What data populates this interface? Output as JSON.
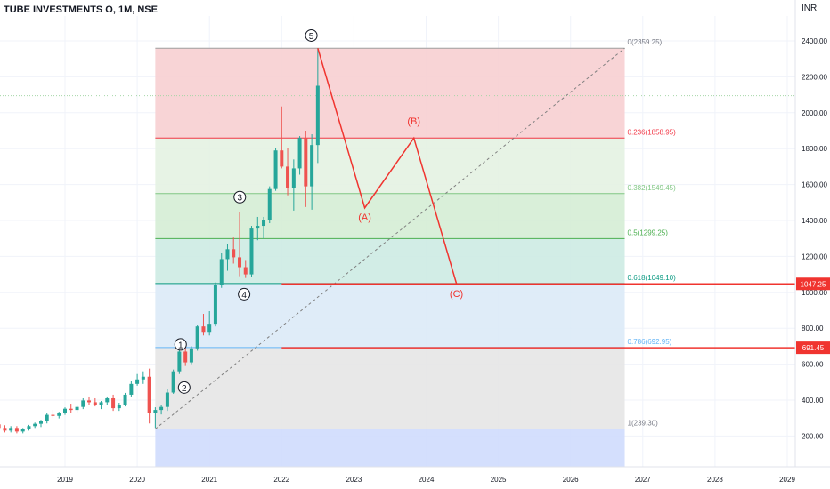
{
  "header": {
    "symbol": "TUBE INVESTMENTS O, 1M, NSE",
    "currency": "INR"
  },
  "colors": {
    "up": "#26a69a",
    "down": "#ef5350",
    "projection": "#f0342f",
    "fib_0": "#f7cfd2",
    "fib_0236": "#e4f2e2",
    "fib_0382": "#d5edd5",
    "fib_05": "#cdebe3",
    "fib_0618": "#dbeaf7",
    "fib_0786": "#e6e6e6",
    "fib_1": "#cfdcfd"
  },
  "chart_data": {
    "type": "candlestick",
    "y_axis": {
      "range": [
        0,
        2550
      ],
      "ticks": [
        "200.00",
        "400.00",
        "600.00",
        "800.00",
        "1000.00",
        "1200.00",
        "1400.00",
        "1600.00",
        "1800.00",
        "2000.00",
        "2200.00",
        "2400.00"
      ],
      "grid": true
    },
    "x_axis": {
      "ticks": [
        "2019",
        "2020",
        "2021",
        "2022",
        "2023",
        "2024",
        "2025",
        "2026",
        "2027",
        "2028",
        "2029"
      ]
    },
    "candles": [
      {
        "t": 2018.0,
        "o": 280,
        "h": 295,
        "l": 250,
        "c": 265
      },
      {
        "t": 2018.083,
        "o": 265,
        "h": 280,
        "l": 235,
        "c": 245
      },
      {
        "t": 2018.167,
        "o": 245,
        "h": 260,
        "l": 220,
        "c": 230
      },
      {
        "t": 2018.25,
        "o": 230,
        "h": 255,
        "l": 220,
        "c": 245
      },
      {
        "t": 2018.333,
        "o": 245,
        "h": 255,
        "l": 215,
        "c": 225
      },
      {
        "t": 2018.417,
        "o": 225,
        "h": 245,
        "l": 215,
        "c": 238
      },
      {
        "t": 2018.5,
        "o": 238,
        "h": 262,
        "l": 230,
        "c": 255
      },
      {
        "t": 2018.583,
        "o": 255,
        "h": 275,
        "l": 245,
        "c": 268
      },
      {
        "t": 2018.667,
        "o": 268,
        "h": 290,
        "l": 250,
        "c": 282
      },
      {
        "t": 2018.75,
        "o": 282,
        "h": 330,
        "l": 270,
        "c": 318
      },
      {
        "t": 2018.833,
        "o": 318,
        "h": 345,
        "l": 300,
        "c": 312
      },
      {
        "t": 2018.917,
        "o": 312,
        "h": 335,
        "l": 298,
        "c": 326
      },
      {
        "t": 2019.0,
        "o": 326,
        "h": 360,
        "l": 318,
        "c": 352
      },
      {
        "t": 2019.083,
        "o": 352,
        "h": 380,
        "l": 330,
        "c": 345
      },
      {
        "t": 2019.167,
        "o": 345,
        "h": 372,
        "l": 330,
        "c": 362
      },
      {
        "t": 2019.25,
        "o": 362,
        "h": 410,
        "l": 350,
        "c": 398
      },
      {
        "t": 2019.333,
        "o": 398,
        "h": 420,
        "l": 375,
        "c": 388
      },
      {
        "t": 2019.417,
        "o": 388,
        "h": 410,
        "l": 365,
        "c": 375
      },
      {
        "t": 2019.5,
        "o": 375,
        "h": 395,
        "l": 350,
        "c": 388
      },
      {
        "t": 2019.583,
        "o": 388,
        "h": 420,
        "l": 375,
        "c": 410
      },
      {
        "t": 2019.667,
        "o": 410,
        "h": 430,
        "l": 340,
        "c": 355
      },
      {
        "t": 2019.75,
        "o": 355,
        "h": 385,
        "l": 340,
        "c": 372
      },
      {
        "t": 2019.833,
        "o": 372,
        "h": 440,
        "l": 365,
        "c": 430
      },
      {
        "t": 2019.917,
        "o": 430,
        "h": 505,
        "l": 420,
        "c": 490
      },
      {
        "t": 2020.0,
        "o": 490,
        "h": 545,
        "l": 480,
        "c": 515
      },
      {
        "t": 2020.083,
        "o": 515,
        "h": 560,
        "l": 490,
        "c": 530
      },
      {
        "t": 2020.167,
        "o": 530,
        "h": 575,
        "l": 270,
        "c": 330
      },
      {
        "t": 2020.25,
        "o": 330,
        "h": 360,
        "l": 245,
        "c": 345
      },
      {
        "t": 2020.333,
        "o": 345,
        "h": 375,
        "l": 320,
        "c": 362
      },
      {
        "t": 2020.417,
        "o": 362,
        "h": 460,
        "l": 340,
        "c": 442
      },
      {
        "t": 2020.5,
        "o": 442,
        "h": 570,
        "l": 435,
        "c": 560
      },
      {
        "t": 2020.583,
        "o": 560,
        "h": 685,
        "l": 545,
        "c": 670
      },
      {
        "t": 2020.667,
        "o": 670,
        "h": 690,
        "l": 590,
        "c": 610
      },
      {
        "t": 2020.75,
        "o": 610,
        "h": 700,
        "l": 600,
        "c": 688
      },
      {
        "t": 2020.833,
        "o": 688,
        "h": 820,
        "l": 675,
        "c": 810
      },
      {
        "t": 2020.917,
        "o": 810,
        "h": 880,
        "l": 760,
        "c": 780
      },
      {
        "t": 2021.0,
        "o": 780,
        "h": 895,
        "l": 760,
        "c": 825
      },
      {
        "t": 2021.083,
        "o": 825,
        "h": 1055,
        "l": 810,
        "c": 1040
      },
      {
        "t": 2021.167,
        "o": 1040,
        "h": 1220,
        "l": 1025,
        "c": 1185
      },
      {
        "t": 2021.25,
        "o": 1185,
        "h": 1270,
        "l": 1120,
        "c": 1240
      },
      {
        "t": 2021.333,
        "o": 1240,
        "h": 1305,
        "l": 1160,
        "c": 1195
      },
      {
        "t": 2021.417,
        "o": 1195,
        "h": 1445,
        "l": 1090,
        "c": 1140
      },
      {
        "t": 2021.5,
        "o": 1140,
        "h": 1180,
        "l": 1080,
        "c": 1100
      },
      {
        "t": 2021.583,
        "o": 1100,
        "h": 1370,
        "l": 1085,
        "c": 1355
      },
      {
        "t": 2021.667,
        "o": 1355,
        "h": 1420,
        "l": 1290,
        "c": 1370
      },
      {
        "t": 2021.75,
        "o": 1370,
        "h": 1420,
        "l": 1300,
        "c": 1400
      },
      {
        "t": 2021.833,
        "o": 1400,
        "h": 1590,
        "l": 1385,
        "c": 1575
      },
      {
        "t": 2021.917,
        "o": 1575,
        "h": 1805,
        "l": 1565,
        "c": 1790
      },
      {
        "t": 2022.0,
        "o": 1790,
        "h": 2035,
        "l": 1690,
        "c": 1700
      },
      {
        "t": 2022.083,
        "o": 1700,
        "h": 1805,
        "l": 1540,
        "c": 1580
      },
      {
        "t": 2022.167,
        "o": 1580,
        "h": 1740,
        "l": 1455,
        "c": 1690
      },
      {
        "t": 2022.25,
        "o": 1690,
        "h": 1870,
        "l": 1655,
        "c": 1860
      },
      {
        "t": 2022.333,
        "o": 1860,
        "h": 1900,
        "l": 1475,
        "c": 1590
      },
      {
        "t": 2022.417,
        "o": 1590,
        "h": 1880,
        "l": 1460,
        "c": 1820
      },
      {
        "t": 2022.5,
        "o": 1820,
        "h": 2359,
        "l": 1720,
        "c": 2150
      }
    ],
    "fib_levels": [
      {
        "ratio": 0,
        "value": 2359.25,
        "label": "0(2359.25)"
      },
      {
        "ratio": 0.236,
        "value": 1858.95,
        "label": "0.236(1858.95)"
      },
      {
        "ratio": 0.382,
        "value": 1549.45,
        "label": "0.382(1549.45)"
      },
      {
        "ratio": 0.5,
        "value": 1299.25,
        "label": "0.5(1299.25)"
      },
      {
        "ratio": 0.618,
        "value": 1049.1,
        "label": "0.618(1049.10)"
      },
      {
        "ratio": 0.786,
        "value": 692.95,
        "label": "0.786(692.95)"
      },
      {
        "ratio": 1,
        "value": 239.3,
        "label": "1(239.30)"
      }
    ],
    "fib_range": {
      "start": 2020.25,
      "end": 2026.75
    },
    "trend_line": {
      "from": {
        "t": 2020.25,
        "v": 239.3
      },
      "to": {
        "t": 2026.75,
        "v": 2359.25
      }
    },
    "wave_labels": [
      {
        "text": "1",
        "t": 2020.6,
        "v": 710
      },
      {
        "text": "2",
        "t": 2020.65,
        "v": 470
      },
      {
        "text": "3",
        "t": 2021.42,
        "v": 1530
      },
      {
        "text": "4",
        "t": 2021.48,
        "v": 990
      },
      {
        "text": "5",
        "t": 2022.41,
        "v": 2430
      }
    ],
    "projection": {
      "points": [
        {
          "t": 2022.5,
          "v": 2359.25
        },
        {
          "t": 2023.15,
          "v": 1470
        },
        {
          "t": 2023.83,
          "v": 1858.95
        },
        {
          "t": 2024.42,
          "v": 1049.1
        }
      ],
      "labels": [
        {
          "text": "(A)",
          "t": 2023.15,
          "v": 1400
        },
        {
          "text": "(B)",
          "t": 2023.83,
          "v": 1935
        },
        {
          "text": "(C)",
          "t": 2024.42,
          "v": 975
        }
      ]
    },
    "horizontal_lines": [
      {
        "from_t": 2022.0,
        "value": 1047.25,
        "label": "1047.25"
      },
      {
        "from_t": 2022.0,
        "value": 691.45,
        "label": "691.45"
      }
    ],
    "reference_line": {
      "value": 2095
    }
  }
}
